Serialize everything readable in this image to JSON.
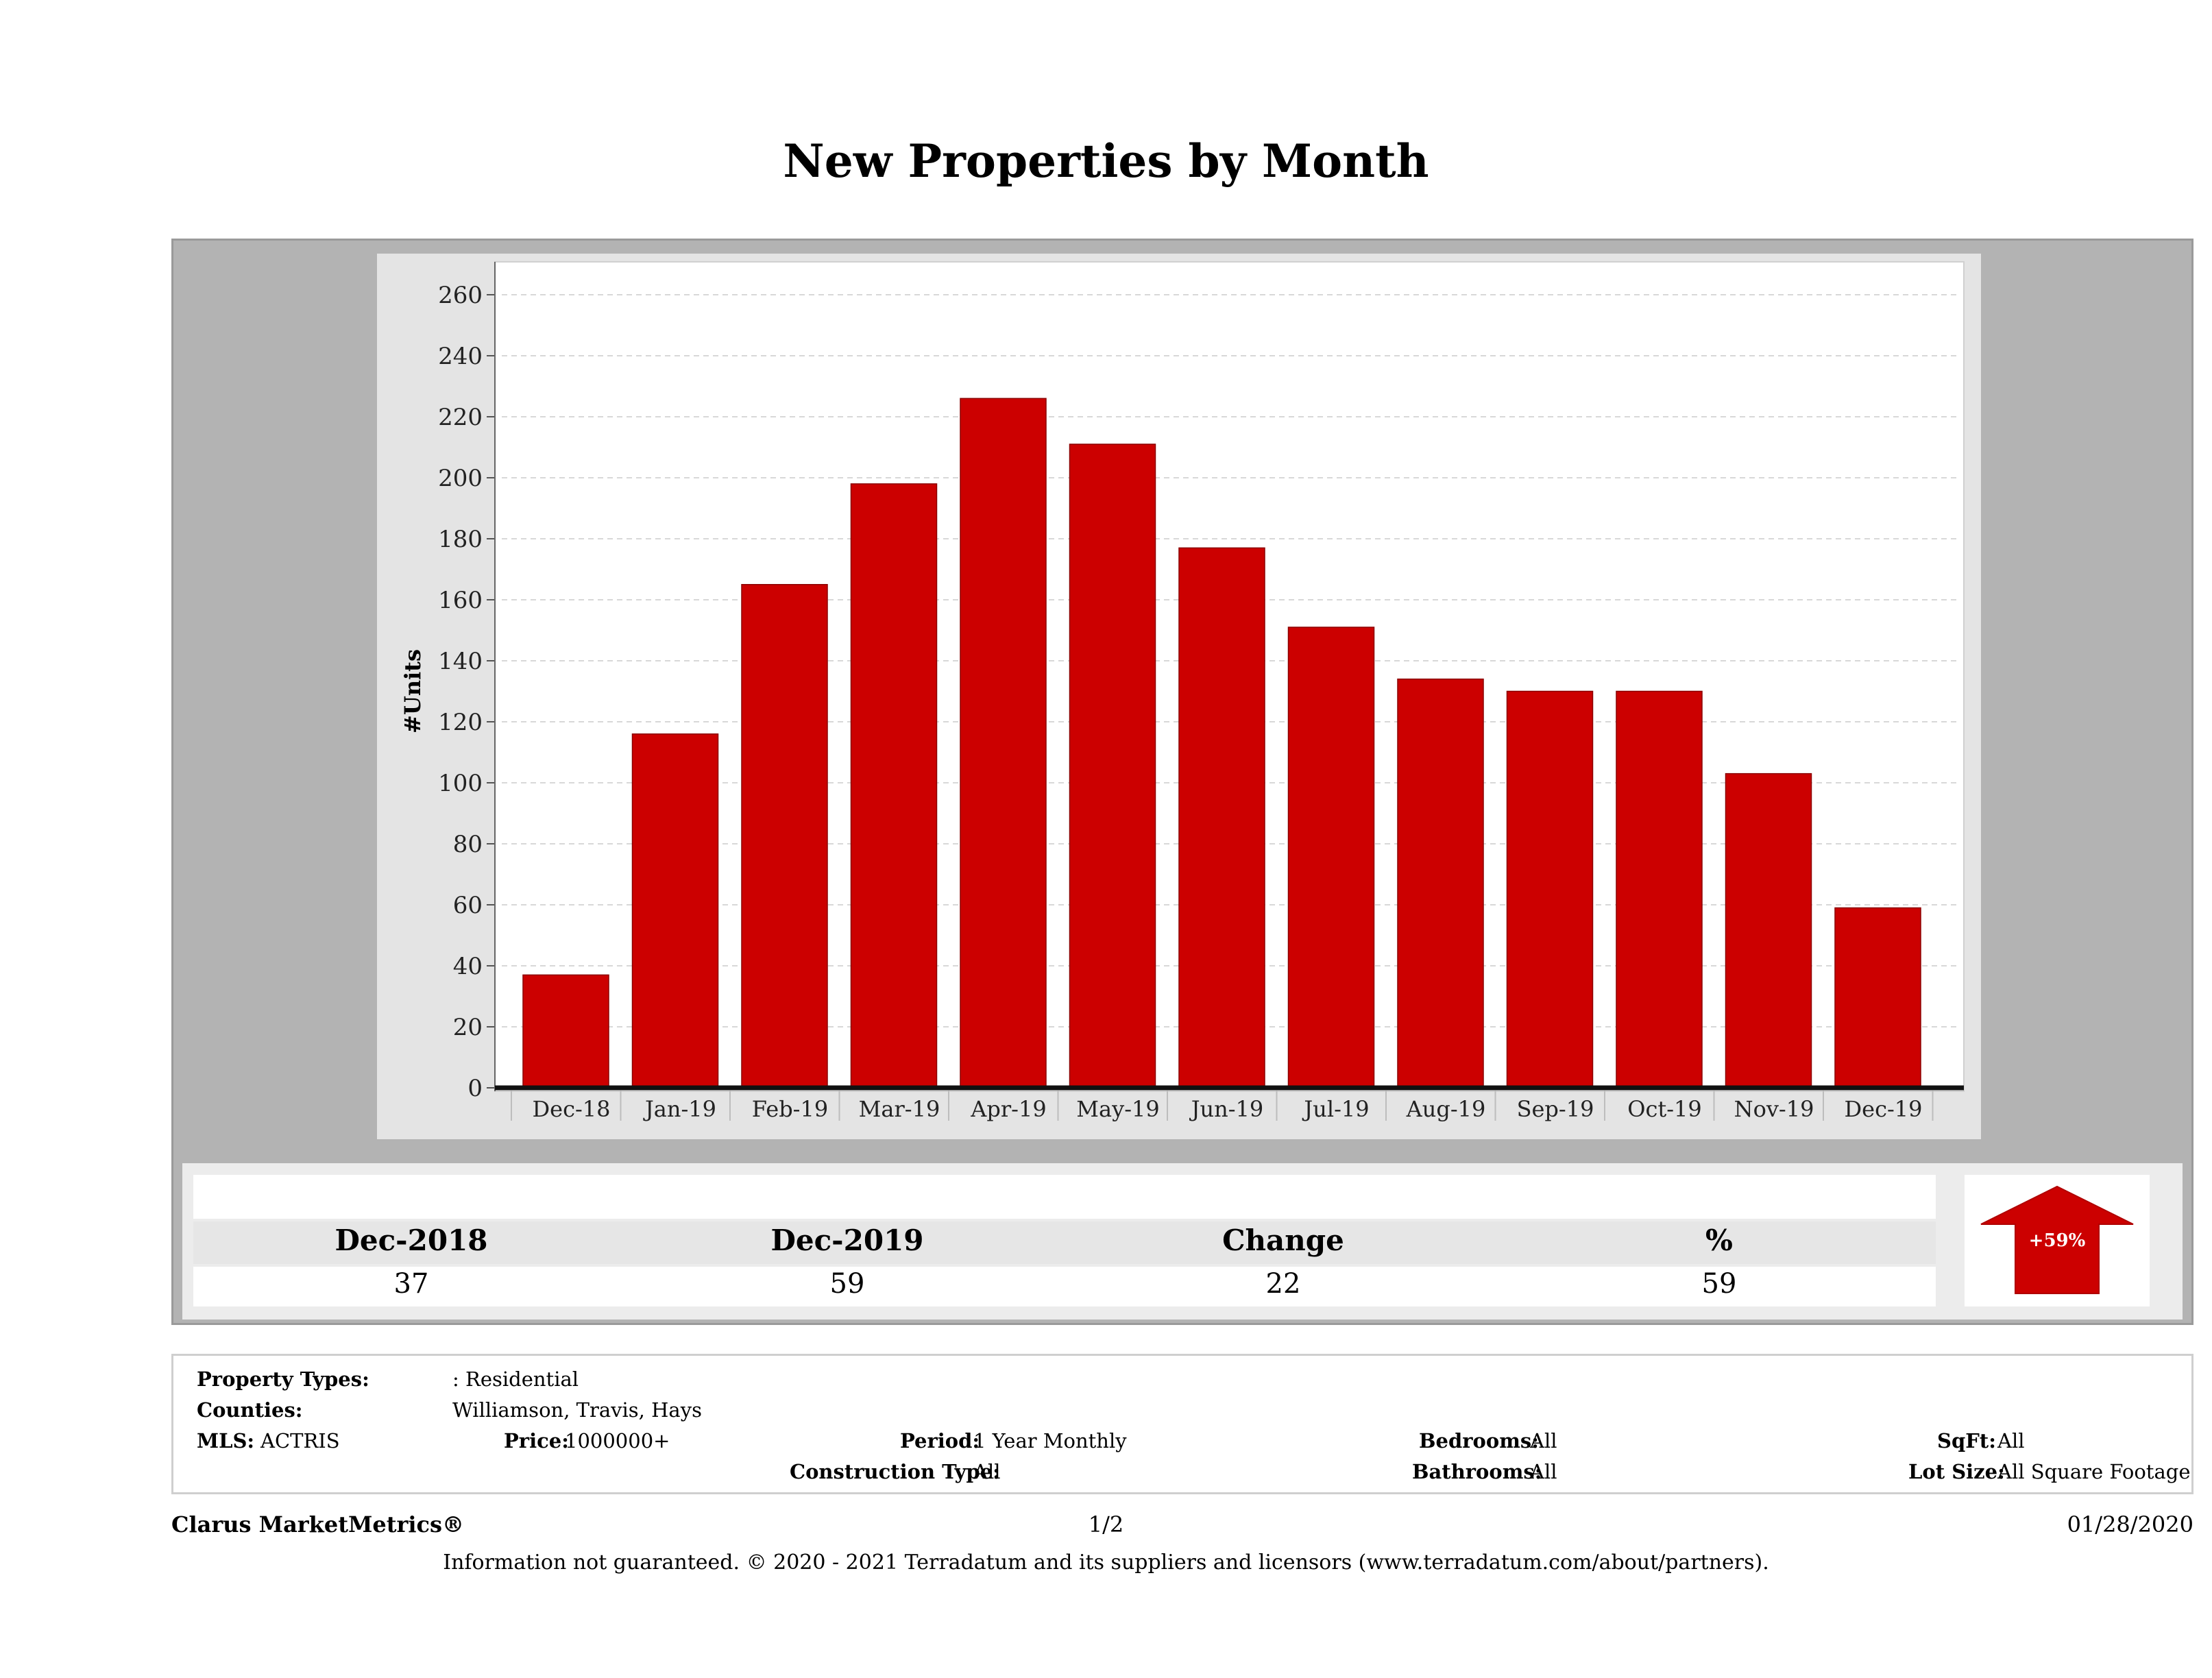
{
  "page": {
    "title": "New Properties by Month"
  },
  "chart_data": {
    "type": "bar",
    "title": "New Properties by Month",
    "ylabel": "#Units",
    "xlabel": "",
    "ylim": [
      0,
      260
    ],
    "yticks": [
      0,
      20,
      40,
      60,
      80,
      100,
      120,
      140,
      160,
      180,
      200,
      220,
      240,
      260
    ],
    "categories": [
      "Dec-18",
      "Jan-19",
      "Feb-19",
      "Mar-19",
      "Apr-19",
      "May-19",
      "Jun-19",
      "Jul-19",
      "Aug-19",
      "Sep-19",
      "Oct-19",
      "Nov-19",
      "Dec-19"
    ],
    "values": [
      37,
      116,
      165,
      198,
      226,
      211,
      177,
      151,
      134,
      130,
      130,
      103,
      59
    ],
    "grid": true,
    "bar_color": "#cc0000"
  },
  "summary": {
    "headers": [
      "Dec-2018",
      "Dec-2019",
      "Change",
      "%"
    ],
    "values": [
      "37",
      "59",
      "22",
      "59"
    ],
    "badge": "+59%",
    "badge_color": "#cc0000",
    "badge_icon": "up-arrow-icon"
  },
  "criteria": {
    "property_types_label": "Property Types:",
    "property_types_value": ": Residential",
    "counties_label": "Counties:",
    "counties_value": "Williamson, Travis, Hays",
    "mls_label": "MLS:",
    "mls_value": "ACTRIS",
    "price_label": "Price:",
    "price_value": "1000000+",
    "period_label": "Period:",
    "period_value": "1 Year Monthly",
    "construction_label": "Construction Type:",
    "construction_value": "All",
    "bedrooms_label": "Bedrooms:",
    "bedrooms_value": "All",
    "bathrooms_label": "Bathrooms:",
    "bathrooms_value": "All",
    "sqft_label": "SqFt:",
    "sqft_value": "All",
    "lotsize_label": "Lot Size:",
    "lotsize_value": "All Square Footage"
  },
  "footer": {
    "brand": "Clarus MarketMetrics®",
    "page": "1/2",
    "date": "01/28/2020",
    "disclaimer": "Information not guaranteed. © 2020 - 2021 Terradatum and its suppliers and licensors (www.terradatum.com/about/partners)."
  }
}
